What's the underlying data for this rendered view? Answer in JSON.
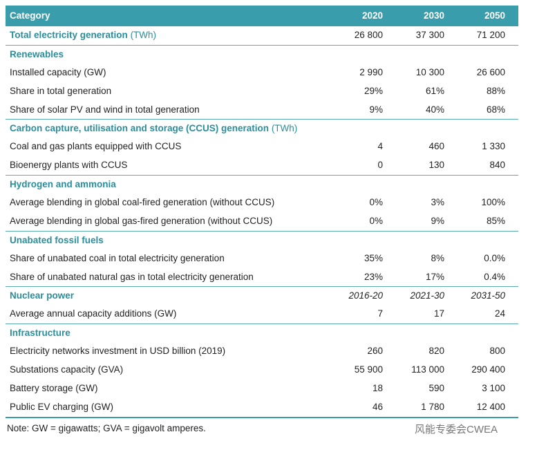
{
  "header": [
    "Category",
    "2020",
    "2030",
    "2050"
  ],
  "total": {
    "label": "Total electricity generation",
    "unit": "(TWh)",
    "values": [
      "26 800",
      "37 300",
      "71 200"
    ]
  },
  "sections": [
    {
      "title": "Renewables",
      "rows": [
        {
          "label": "Installed capacity (GW)",
          "values": [
            "2 990",
            "10 300",
            "26 600"
          ]
        },
        {
          "label": "Share in total generation",
          "values": [
            "29%",
            "61%",
            "88%"
          ]
        },
        {
          "label": "Share of solar PV and wind in total generation",
          "values": [
            "9%",
            "40%",
            "68%"
          ]
        }
      ]
    },
    {
      "title": "Carbon capture, utilisation and storage (CCUS) generation",
      "unit": "(TWh)",
      "rows": [
        {
          "label": "Coal and gas plants equipped with CCUS",
          "values": [
            "4",
            "460",
            "1 330"
          ]
        },
        {
          "label": "Bioenergy plants with CCUS",
          "values": [
            "0",
            "130",
            "840"
          ]
        }
      ]
    },
    {
      "title": "Hydrogen and ammonia",
      "rows": [
        {
          "label": "Average blending in global coal-fired generation (without CCUS)",
          "values": [
            "0%",
            "3%",
            "100%"
          ]
        },
        {
          "label": "Average blending in global gas-fired generation (without CCUS)",
          "values": [
            "0%",
            "9%",
            "85%"
          ]
        }
      ]
    },
    {
      "title": "Unabated fossil fuels",
      "rows": [
        {
          "label": "Share of unabated coal in total electricity generation",
          "values": [
            "35%",
            "8%",
            "0.0%"
          ]
        },
        {
          "label": "Share of unabated natural gas in total electricity generation",
          "values": [
            "23%",
            "17%",
            "0.4%"
          ]
        }
      ]
    },
    {
      "title": "Nuclear power",
      "periods": [
        "2016-20",
        "2021-30",
        "2031-50"
      ],
      "rows": [
        {
          "label": "Average annual capacity additions (GW)",
          "values": [
            "7",
            "17",
            "24"
          ]
        }
      ]
    },
    {
      "title": "Infrastructure",
      "rows": [
        {
          "label": "Electricity networks investment in USD billion (2019)",
          "values": [
            "260",
            "820",
            "800"
          ]
        },
        {
          "label": "Substations capacity (GVA)",
          "values": [
            "55 900",
            "113 000",
            "290 400"
          ]
        },
        {
          "label": "Battery storage (GW)",
          "values": [
            "18",
            "590",
            "3 100"
          ]
        },
        {
          "label": "Public EV charging (GW)",
          "values": [
            "46",
            "1 780",
            "12 400"
          ]
        }
      ]
    }
  ],
  "note": "Note: GW = gigawatts; GVA = gigavolt amperes.",
  "watermark": "风能专委会CWEA"
}
